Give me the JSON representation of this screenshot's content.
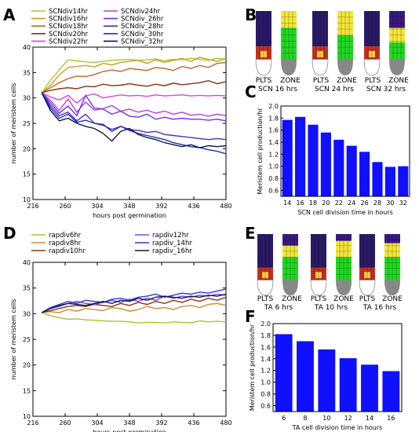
{
  "panel_letters": [
    "A",
    "B",
    "C",
    "D",
    "E",
    "F"
  ],
  "colors": {
    "axis": "#000000",
    "bar": "#1010ff",
    "plts_top": "#2a1a66",
    "plts_mid": "#c03020",
    "plts_hot": "#ffcc40",
    "zone_yellow": "#f2e63a",
    "zone_green": "#22d822",
    "zone_purple": "#3a1a80",
    "cap_grey": "#888888"
  },
  "panel_b_labels": {
    "plts": "PLTS",
    "zone": "ZONE",
    "captions": [
      "SCN 16 hrs",
      "SCN 24 hrs",
      "SCN 32 hrs"
    ]
  },
  "panel_e_labels": {
    "plts": "PLTS",
    "zone": "ZONE",
    "captions": [
      "TA 6 hrs",
      "TA 10 hrs",
      "TA 16 hrs"
    ]
  },
  "chart_data": [
    {
      "panel": "A",
      "type": "line",
      "xlabel": "hours post germination",
      "ylabel": "number of meristem cells",
      "xlim": [
        216,
        480
      ],
      "ylim": [
        10,
        40
      ],
      "xticks": [
        216,
        260,
        304,
        348,
        392,
        436,
        480
      ],
      "yticks": [
        10,
        15,
        20,
        25,
        30,
        35,
        40
      ],
      "legend_placement": "top",
      "x": [
        228,
        240,
        252,
        264,
        276,
        288,
        300,
        312,
        324,
        336,
        348,
        360,
        372,
        384,
        396,
        408,
        420,
        432,
        444,
        456,
        468,
        480
      ],
      "series": [
        {
          "name": "SCNdiv14hr",
          "color": "#a8c832",
          "values": [
            31,
            33.5,
            35.5,
            37.5,
            37.3,
            37.1,
            37,
            37.2,
            37.4,
            37.5,
            37.6,
            37.4,
            37.5,
            37.7,
            37.3,
            37.6,
            37.5,
            37.8,
            37.6,
            37.4,
            37.8,
            37.6
          ]
        },
        {
          "name": "SCNdiv16hr",
          "color": "#c8a028",
          "values": [
            31,
            32.5,
            34.5,
            36,
            36.2,
            36.4,
            36.1,
            36.8,
            36.5,
            37,
            37.2,
            37.4,
            36.8,
            37.5,
            37,
            37.4,
            37.8,
            37.2,
            38,
            37.6,
            37.2,
            37.8
          ]
        },
        {
          "name": "SCNdiv18hr",
          "color": "#b86a28",
          "values": [
            31,
            32,
            33,
            33.8,
            34.3,
            34.2,
            34.6,
            35.2,
            35.5,
            35.2,
            35.8,
            35.6,
            35.4,
            36,
            35.8,
            35.4,
            36.2,
            35.8,
            36.4,
            36,
            36.8,
            37
          ]
        },
        {
          "name": "SCNdiv20hr",
          "color": "#8a3210",
          "values": [
            31,
            31.5,
            31.8,
            32,
            31.8,
            32.3,
            32.2,
            32.7,
            32.4,
            32.5,
            32.8,
            32.5,
            32.3,
            32.7,
            32.4,
            32.9,
            32.6,
            32.8,
            33,
            33.4,
            32.8,
            33.2
          ]
        },
        {
          "name": "SCNdiv22hr",
          "color": "#e040e0",
          "values": [
            31,
            30.2,
            29.6,
            30.5,
            29,
            30.4,
            30.8,
            30,
            30.3,
            30.6,
            30.4,
            30.5,
            30.3,
            30.6,
            30.4,
            30.5,
            30.6,
            30.4,
            30.5,
            30.4,
            30.5,
            30.4
          ]
        },
        {
          "name": "SCNdiv24hr",
          "color": "#b040e8",
          "values": [
            31,
            29.5,
            27.5,
            29.8,
            27.2,
            29.2,
            27.6,
            27.9,
            28.5,
            27.4,
            27.8,
            27.2,
            27.6,
            27,
            27.4,
            26.8,
            27.2,
            26.6,
            26.8,
            26.4,
            26.8,
            26.5
          ]
        },
        {
          "name": "SCNdiv_26hr",
          "color": "#7030f0",
          "values": [
            31,
            29,
            27,
            28.4,
            26.5,
            30.5,
            28,
            27.8,
            26.8,
            27.4,
            26.4,
            26.2,
            26.8,
            25.8,
            26.2,
            25.8,
            26,
            25.8,
            25.8,
            25.6,
            25.8,
            25.5
          ]
        },
        {
          "name": "SCNdiv_28hr",
          "color": "#4a30c8",
          "values": [
            31,
            28.5,
            26.5,
            27.2,
            25.5,
            26.8,
            25,
            24.6,
            23.8,
            24.4,
            23.8,
            23.6,
            23.2,
            23.4,
            22.8,
            22.6,
            22.4,
            22.2,
            22,
            21.8,
            22,
            21.8
          ]
        },
        {
          "name": "SCNdiv_30hr",
          "color": "#2030b0",
          "values": [
            31,
            28,
            26,
            26.8,
            25.2,
            25.6,
            25,
            24.8,
            23.4,
            24.4,
            23.6,
            23,
            22.6,
            22.2,
            21.8,
            21.2,
            20.8,
            20.4,
            20.2,
            19.8,
            19.5,
            19
          ]
        },
        {
          "name": "SCNdiv_32hr",
          "color": "#101850",
          "values": [
            31,
            27.5,
            25.5,
            26,
            25,
            24.4,
            24,
            23,
            21.5,
            23.4,
            24,
            22.8,
            22.2,
            21.8,
            21.2,
            20.8,
            20.4,
            20.8,
            20.2,
            20.6,
            20.4,
            20.6
          ]
        }
      ]
    },
    {
      "panel": "C",
      "type": "bar",
      "xlabel": "SCN cell division time in hours",
      "ylabel": "Meristem cell production/hr",
      "categories": [
        "14",
        "16",
        "18",
        "20",
        "22",
        "24",
        "26",
        "28",
        "30",
        "32"
      ],
      "values": [
        1.77,
        1.82,
        1.69,
        1.56,
        1.44,
        1.34,
        1.24,
        1.07,
        0.99,
        1.0
      ],
      "ylim": [
        0.5,
        2.0
      ],
      "yticks": [
        0.6,
        0.8,
        1.0,
        1.2,
        1.4,
        1.6,
        1.8,
        2.0
      ],
      "ytick_labels": [
        "0.6",
        "0.8",
        "1.0",
        "1.2",
        "1.4",
        "1.6",
        "1.8",
        "2.0"
      ]
    },
    {
      "panel": "D",
      "type": "line",
      "xlabel": "hours post germination",
      "ylabel": "number of meristem cells",
      "xlim": [
        216,
        480
      ],
      "ylim": [
        10,
        40
      ],
      "xticks": [
        216,
        260,
        304,
        348,
        392,
        436,
        480
      ],
      "yticks": [
        10,
        15,
        20,
        25,
        30,
        35,
        40
      ],
      "legend_placement": "top",
      "x": [
        228,
        240,
        252,
        264,
        276,
        288,
        300,
        312,
        324,
        336,
        348,
        360,
        372,
        384,
        396,
        408,
        420,
        432,
        444,
        456,
        468,
        480
      ],
      "series": [
        {
          "name": "rapdiv6hr",
          "color": "#b0c030",
          "values": [
            30.2,
            29.6,
            29.2,
            28.9,
            29,
            28.8,
            28.7,
            28.6,
            28.5,
            28.5,
            28.4,
            28.2,
            28.3,
            28.3,
            28.2,
            28.4,
            28.3,
            28.2,
            28.6,
            28.4,
            28.5,
            28.4
          ]
        },
        {
          "name": "rapdiv8hr",
          "color": "#c89030",
          "values": [
            30.2,
            30.4,
            30.2,
            30.8,
            30.5,
            31,
            30.8,
            30.6,
            31.2,
            31,
            30.5,
            30.8,
            31.4,
            31,
            31.2,
            30.8,
            31.4,
            31.6,
            31.2,
            31.8,
            32,
            31.6
          ]
        },
        {
          "name": "rapdiv10hr",
          "color": "#8a3210",
          "values": [
            30.2,
            30.6,
            31,
            31.4,
            31.6,
            31.4,
            31.8,
            31.6,
            31.4,
            32,
            31.6,
            32.2,
            31.8,
            32.4,
            32,
            32.6,
            32.2,
            32.8,
            32.4,
            33,
            32.6,
            33.2
          ]
        },
        {
          "name": "rapdiv12hr",
          "color": "#8040e0",
          "values": [
            30.2,
            31,
            31.4,
            32,
            32.4,
            32,
            31.8,
            32.2,
            32.6,
            32.2,
            32.8,
            32.4,
            33,
            32.6,
            33.4,
            33,
            33.4,
            33.2,
            33.6,
            33.4,
            33.8,
            33.6
          ]
        },
        {
          "name": "rapdiv_14hr",
          "color": "#2a3ad8",
          "values": [
            30.2,
            31.2,
            31.8,
            32.4,
            32,
            32.6,
            32.4,
            32.2,
            32.8,
            33,
            32.6,
            33.2,
            33.4,
            33.8,
            33.2,
            33.6,
            34,
            33.8,
            34.2,
            34,
            34.4,
            34.8
          ]
        },
        {
          "name": "rapdiv_16hr",
          "color": "#101850",
          "values": [
            30.2,
            31,
            31.6,
            32,
            31.8,
            31.6,
            32,
            32.4,
            32,
            32.6,
            32.4,
            33,
            32.6,
            33.2,
            33.4,
            33.2,
            33,
            33.4,
            33.2,
            33.6,
            33.4,
            33.8
          ]
        }
      ]
    },
    {
      "panel": "F",
      "type": "bar",
      "xlabel": "TA cell division time in hours",
      "ylabel": "Meristem cell production/hr",
      "categories": [
        "6",
        "8",
        "10",
        "12",
        "14",
        "16"
      ],
      "values": [
        1.82,
        1.7,
        1.56,
        1.41,
        1.3,
        1.19
      ],
      "ylim": [
        0.5,
        2.0
      ],
      "yticks": [
        0.6,
        0.8,
        1.0,
        1.2,
        1.4,
        1.6,
        1.8,
        2.0
      ],
      "ytick_labels": [
        "0.6",
        "0.8",
        "1.0",
        "1.2",
        "1.4",
        "1.6",
        "1.8",
        "2.0"
      ]
    }
  ]
}
